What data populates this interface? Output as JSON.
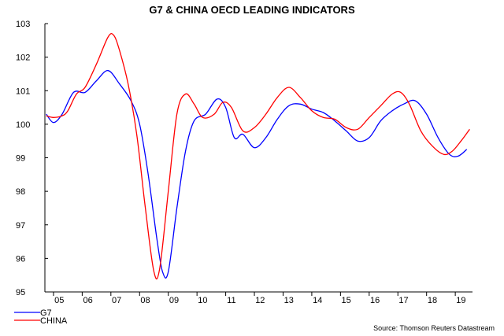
{
  "chart_data": {
    "type": "line",
    "title": "G7 & CHINA OECD LEADING INDICATORS",
    "xlabel": "",
    "ylabel": "",
    "xlim": [
      2004.7,
      2019.6
    ],
    "ylim": [
      95,
      103
    ],
    "y_ticks": [
      95,
      96,
      97,
      98,
      99,
      100,
      101,
      102,
      103
    ],
    "x_ticks": [
      {
        "label": "05",
        "value": 2005.2
      },
      {
        "label": "06",
        "value": 2006.2
      },
      {
        "label": "07",
        "value": 2007.2
      },
      {
        "label": "08",
        "value": 2008.2
      },
      {
        "label": "09",
        "value": 2009.2
      },
      {
        "label": "10",
        "value": 2010.2
      },
      {
        "label": "11",
        "value": 2011.2
      },
      {
        "label": "12",
        "value": 2012.2
      },
      {
        "label": "13",
        "value": 2013.2
      },
      {
        "label": "14",
        "value": 2014.2
      },
      {
        "label": "15",
        "value": 2015.2
      },
      {
        "label": "16",
        "value": 2016.2
      },
      {
        "label": "17",
        "value": 2017.2
      },
      {
        "label": "18",
        "value": 2018.2
      },
      {
        "label": "19",
        "value": 2019.2
      }
    ],
    "grid": false,
    "legend_position": "bottom-left",
    "series": [
      {
        "name": "G7",
        "color": "#0000ff",
        "points": [
          [
            2004.75,
            100.3
          ],
          [
            2005.0,
            100.05
          ],
          [
            2005.3,
            100.3
          ],
          [
            2005.7,
            100.95
          ],
          [
            2006.1,
            100.95
          ],
          [
            2006.5,
            101.3
          ],
          [
            2006.9,
            101.6
          ],
          [
            2007.3,
            101.2
          ],
          [
            2007.7,
            100.7
          ],
          [
            2008.0,
            100.0
          ],
          [
            2008.3,
            98.5
          ],
          [
            2008.6,
            96.6
          ],
          [
            2008.8,
            95.6
          ],
          [
            2009.0,
            95.6
          ],
          [
            2009.3,
            97.5
          ],
          [
            2009.6,
            99.2
          ],
          [
            2009.9,
            100.1
          ],
          [
            2010.3,
            100.3
          ],
          [
            2010.7,
            100.75
          ],
          [
            2011.0,
            100.5
          ],
          [
            2011.3,
            99.6
          ],
          [
            2011.6,
            99.7
          ],
          [
            2012.0,
            99.3
          ],
          [
            2012.4,
            99.6
          ],
          [
            2012.8,
            100.15
          ],
          [
            2013.2,
            100.55
          ],
          [
            2013.6,
            100.6
          ],
          [
            2014.0,
            100.45
          ],
          [
            2014.4,
            100.35
          ],
          [
            2014.8,
            100.1
          ],
          [
            2015.2,
            99.8
          ],
          [
            2015.6,
            99.5
          ],
          [
            2016.0,
            99.6
          ],
          [
            2016.4,
            100.1
          ],
          [
            2016.8,
            100.4
          ],
          [
            2017.2,
            100.6
          ],
          [
            2017.6,
            100.7
          ],
          [
            2018.0,
            100.3
          ],
          [
            2018.4,
            99.6
          ],
          [
            2018.8,
            99.1
          ],
          [
            2019.1,
            99.05
          ],
          [
            2019.4,
            99.25
          ]
        ]
      },
      {
        "name": "CHINA",
        "color": "#ff0000",
        "points": [
          [
            2004.75,
            100.25
          ],
          [
            2005.0,
            100.2
          ],
          [
            2005.3,
            100.25
          ],
          [
            2005.5,
            100.4
          ],
          [
            2005.8,
            100.9
          ],
          [
            2006.1,
            101.1
          ],
          [
            2006.5,
            101.8
          ],
          [
            2006.9,
            102.6
          ],
          [
            2007.1,
            102.65
          ],
          [
            2007.3,
            102.2
          ],
          [
            2007.6,
            101.2
          ],
          [
            2007.9,
            99.7
          ],
          [
            2008.2,
            97.5
          ],
          [
            2008.5,
            95.6
          ],
          [
            2008.7,
            95.7
          ],
          [
            2009.0,
            98.0
          ],
          [
            2009.3,
            100.3
          ],
          [
            2009.6,
            100.9
          ],
          [
            2009.9,
            100.6
          ],
          [
            2010.2,
            100.2
          ],
          [
            2010.6,
            100.3
          ],
          [
            2010.9,
            100.65
          ],
          [
            2011.2,
            100.5
          ],
          [
            2011.6,
            99.8
          ],
          [
            2012.0,
            99.9
          ],
          [
            2012.4,
            100.3
          ],
          [
            2012.8,
            100.8
          ],
          [
            2013.2,
            101.1
          ],
          [
            2013.6,
            100.8
          ],
          [
            2014.0,
            100.4
          ],
          [
            2014.4,
            100.2
          ],
          [
            2014.8,
            100.15
          ],
          [
            2015.2,
            99.9
          ],
          [
            2015.6,
            99.85
          ],
          [
            2016.0,
            100.2
          ],
          [
            2016.4,
            100.55
          ],
          [
            2016.8,
            100.9
          ],
          [
            2017.1,
            100.95
          ],
          [
            2017.4,
            100.6
          ],
          [
            2017.8,
            99.8
          ],
          [
            2018.2,
            99.35
          ],
          [
            2018.6,
            99.1
          ],
          [
            2018.9,
            99.2
          ],
          [
            2019.2,
            99.5
          ],
          [
            2019.5,
            99.85
          ]
        ]
      }
    ],
    "legend": [
      {
        "name": "G7",
        "color": "#0000ff"
      },
      {
        "name": "CHINA",
        "color": "#ff0000"
      }
    ],
    "source": "Source: Thomson Reuters Datastream"
  }
}
